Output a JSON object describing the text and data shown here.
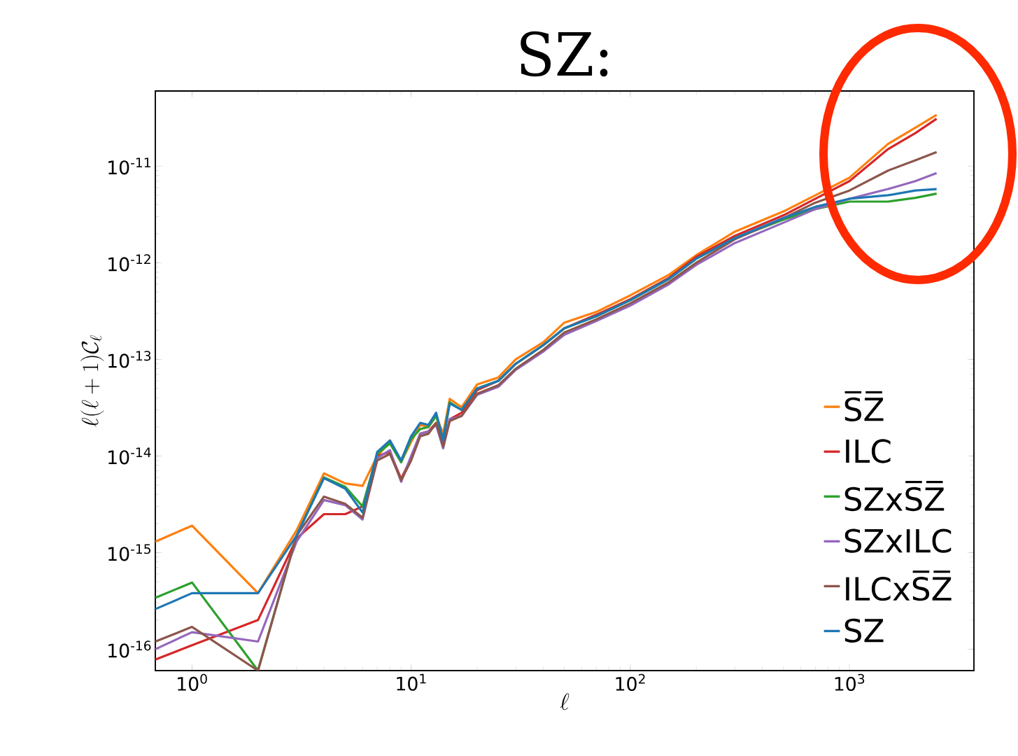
{
  "chart_data": {
    "type": "line",
    "title": "SZ:",
    "xlabel": "\\ell",
    "ylabel": "\\ell(\\ell+1)\\mathcal{C}_\\ell",
    "log": "xy",
    "legend": "bottom right",
    "x": [
      0.68,
      1,
      2,
      3,
      4,
      5,
      6,
      7,
      8,
      9,
      10,
      11,
      12,
      13,
      14,
      15,
      17,
      20,
      25,
      30,
      40,
      50,
      70,
      100,
      150,
      200,
      300,
      500,
      700,
      1000,
      1500,
      2000,
      2500
    ],
    "xlim": [
      0.68,
      3700
    ],
    "ylim": [
      6e-17,
      6e-11
    ],
    "xticks": [
      {
        "value": 1,
        "label": "10$^{0}$"
      },
      {
        "value": 10,
        "label": "10$^{1}$"
      },
      {
        "value": 100,
        "label": "10$^{2}$"
      },
      {
        "value": 1000,
        "label": "10$^{3}$"
      }
    ],
    "yticks": [
      {
        "value": 1e-16,
        "label": "10$^{-16}$"
      },
      {
        "value": 1e-15,
        "label": "10$^{-15}$"
      },
      {
        "value": 1e-14,
        "label": "10$^{-14}$"
      },
      {
        "value": 1e-13,
        "label": "10$^{-13}$"
      },
      {
        "value": 1e-12,
        "label": "10$^{-12}$"
      },
      {
        "value": 1e-11,
        "label": "10$^{-11}$"
      }
    ],
    "series": [
      {
        "name": "S̅Z̅",
        "color": "#ff7f0e",
        "values": [
          1.3e-15,
          1.9e-15,
          3.8e-16,
          1.7e-15,
          6.6e-15,
          5.2e-15,
          4.9e-15,
          1e-14,
          1.4e-14,
          8.7e-15,
          1.4e-14,
          2.1e-14,
          2e-14,
          2.6e-14,
          1.7e-14,
          3.9e-14,
          3.2e-14,
          5.5e-14,
          6.5e-14,
          1e-13,
          1.5e-13,
          2.4e-13,
          3.1e-13,
          4.6e-13,
          7.5e-13,
          1.2e-12,
          2.1e-12,
          3.4e-12,
          5e-12,
          7.6e-12,
          1.7e-11,
          2.5e-11,
          3.4e-11
        ]
      },
      {
        "name": "ILC",
        "color": "#d62728",
        "values": [
          7.8e-17,
          1.1e-16,
          2e-16,
          1.4e-15,
          2.5e-15,
          2.5e-15,
          3e-15,
          1e-14,
          1.1e-14,
          5.8e-15,
          9.5e-15,
          1.7e-14,
          1.8e-14,
          2.2e-14,
          1.3e-14,
          2.4e-14,
          2.8e-14,
          4.8e-14,
          6e-14,
          9e-14,
          1.4e-13,
          2.1e-13,
          2.9e-13,
          4.2e-13,
          7e-13,
          1.15e-12,
          1.9e-12,
          3.1e-12,
          4.6e-12,
          7e-12,
          1.5e-11,
          2.2e-11,
          3.1e-11
        ]
      },
      {
        "name": "SZxS̅Z̅",
        "color": "#2ca02c",
        "values": [
          3.4e-16,
          4.9e-16,
          6e-17,
          1.5e-15,
          6e-15,
          4.8e-15,
          3e-15,
          1.05e-14,
          1.35e-14,
          8.6e-15,
          1.5e-14,
          1.9e-14,
          2e-14,
          2.6e-14,
          1.5e-14,
          3.6e-14,
          3e-14,
          5e-14,
          6e-14,
          9e-14,
          1.4e-13,
          2.1e-13,
          2.8e-13,
          4.1e-13,
          6.8e-13,
          1.1e-12,
          1.8e-12,
          2.8e-12,
          3.6e-12,
          4.3e-12,
          4.3e-12,
          4.7e-12,
          5.2e-12
        ]
      },
      {
        "name": "SZxILC",
        "color": "#9467bd",
        "values": [
          1e-16,
          1.5e-16,
          1.2e-16,
          1.3e-15,
          3.5e-15,
          3.1e-15,
          2.2e-15,
          9.5e-15,
          1.15e-14,
          5.4e-15,
          1e-14,
          1.7e-14,
          1.8e-14,
          2.1e-14,
          1.2e-14,
          2.4e-14,
          2.6e-14,
          4.3e-14,
          5.2e-14,
          7.8e-14,
          1.2e-13,
          1.8e-13,
          2.5e-13,
          3.6e-13,
          6e-13,
          9.5e-13,
          1.6e-12,
          2.6e-12,
          3.6e-12,
          4.6e-12,
          5.8e-12,
          7e-12,
          8.5e-12
        ]
      },
      {
        "name": "ILCxS̅Z̅",
        "color": "#8c564b",
        "values": [
          1.2e-16,
          1.7e-16,
          6e-17,
          1.5e-15,
          3.8e-15,
          3.2e-15,
          2.3e-15,
          9e-15,
          1.05e-14,
          5.6e-15,
          9e-15,
          1.6e-14,
          1.7e-14,
          2.2e-14,
          1.25e-14,
          2.3e-14,
          2.6e-14,
          4.4e-14,
          5.4e-14,
          8e-14,
          1.25e-13,
          1.9e-13,
          2.6e-13,
          3.8e-13,
          6.3e-13,
          1e-12,
          1.75e-12,
          2.9e-12,
          4.2e-12,
          5.6e-12,
          9e-12,
          1.15e-11,
          1.4e-11
        ]
      },
      {
        "name": "SZ",
        "color": "#1f77b4",
        "values": [
          2.6e-16,
          3.8e-16,
          3.8e-16,
          1.5e-15,
          5.9e-15,
          4.6e-15,
          2.6e-15,
          1.1e-14,
          1.45e-14,
          9e-15,
          1.6e-14,
          2.2e-14,
          2.1e-14,
          2.8e-14,
          1.45e-14,
          3.5e-14,
          3e-14,
          5e-14,
          6e-14,
          9e-14,
          1.4e-13,
          2.1e-13,
          2.8e-13,
          4.1e-13,
          6.8e-13,
          1.1e-12,
          1.8e-12,
          2.9e-12,
          3.8e-12,
          4.6e-12,
          5e-12,
          5.6e-12,
          5.8e-12
        ]
      }
    ]
  }
}
